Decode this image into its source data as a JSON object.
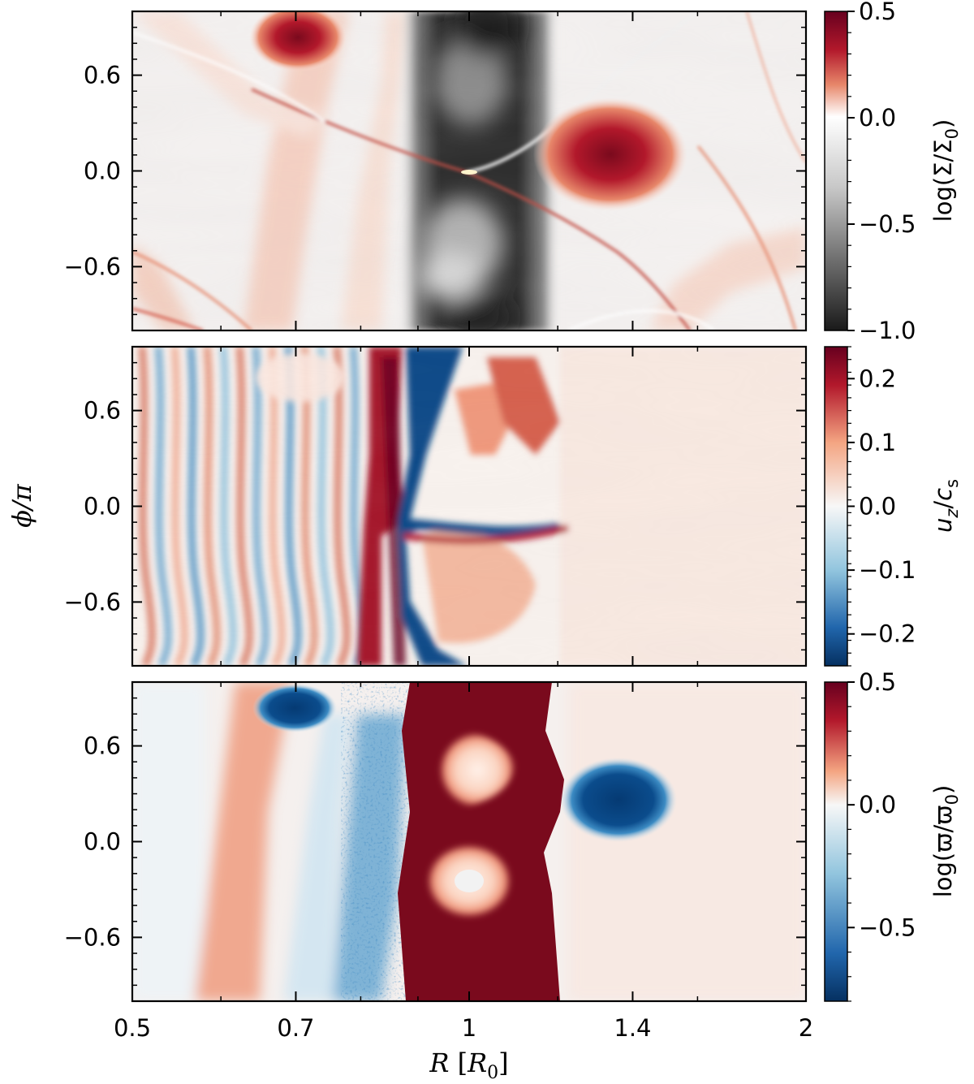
{
  "chart_data": {
    "type": "heatmap",
    "shared_x": {
      "label": "R [R0]",
      "label_parts": [
        "R",
        " [",
        "R",
        "0",
        "]"
      ],
      "scale": "log",
      "range": [
        0.5,
        2
      ],
      "ticks": [
        0.5,
        0.7,
        1,
        1.4,
        2
      ],
      "tick_labels": [
        "0.5",
        "0.7",
        "1",
        "1.4",
        "2"
      ]
    },
    "shared_y": {
      "label": "ϕ/π",
      "range": [
        -1,
        1
      ],
      "ticks": [
        0.6,
        0.0,
        -0.6
      ],
      "tick_labels": [
        "0.6",
        "0.0",
        "−0.6"
      ]
    },
    "panels": [
      {
        "id": "surface-density",
        "quantity": "log(Σ/Σ0)",
        "colormap": "RdGy_r",
        "colorbar": {
          "range": [
            -1.0,
            0.5
          ],
          "ticks": [
            0.5,
            0.0,
            -0.5,
            -1.0
          ],
          "tick_labels": [
            "0.5",
            "0.0",
            "−0.5",
            "−1.0"
          ],
          "label_parts": [
            "log(Σ/Σ",
            "0",
            ")"
          ]
        },
        "features": [
          {
            "kind": "overdense vortex",
            "R": 0.7,
            "phi": 0.82,
            "level": 0.45
          },
          {
            "kind": "overdense vortex",
            "R": 1.28,
            "phi": 0.1,
            "level": 0.5
          },
          {
            "kind": "gap",
            "R_range": [
              0.88,
              1.15
            ],
            "level": -0.9
          }
        ]
      },
      {
        "id": "vertical-velocity",
        "quantity": "uz/cs",
        "colormap": "RdBu_r",
        "colorbar": {
          "range": [
            -0.25,
            0.25
          ],
          "ticks": [
            0.2,
            0.1,
            0.0,
            -0.1,
            -0.2
          ],
          "tick_labels": [
            "0.2",
            "0.1",
            "0.0",
            "−0.1",
            "−0.2"
          ],
          "label_parts": [
            "u",
            "z",
            "/",
            "c",
            "s"
          ]
        },
        "features": [
          {
            "kind": "vertical stripes",
            "R_range": [
              0.5,
              0.85
            ],
            "level": 0.1
          },
          {
            "kind": "gap edge flow",
            "R_range": [
              0.86,
              1.2
            ],
            "level": 0.25
          }
        ]
      },
      {
        "id": "vortensity",
        "quantity": "log(ϖ/ϖ0)",
        "colormap": "RdBu_r",
        "colorbar": {
          "range": [
            -0.8,
            0.5
          ],
          "ticks": [
            0.5,
            0.0,
            -0.5
          ],
          "tick_labels": [
            "0.5",
            "0.0",
            "−0.5"
          ],
          "label_parts": [
            "log(ϖ/ϖ",
            "0",
            ")"
          ]
        },
        "features": [
          {
            "kind": "low vortensity vortex",
            "R": 0.7,
            "phi": 0.82,
            "level": -0.8
          },
          {
            "kind": "low vortensity vortex",
            "R": 1.28,
            "phi": 0.1,
            "level": -0.8
          },
          {
            "kind": "high vortensity gap",
            "R_range": [
              0.88,
              1.15
            ],
            "level": 0.5
          }
        ]
      }
    ]
  }
}
